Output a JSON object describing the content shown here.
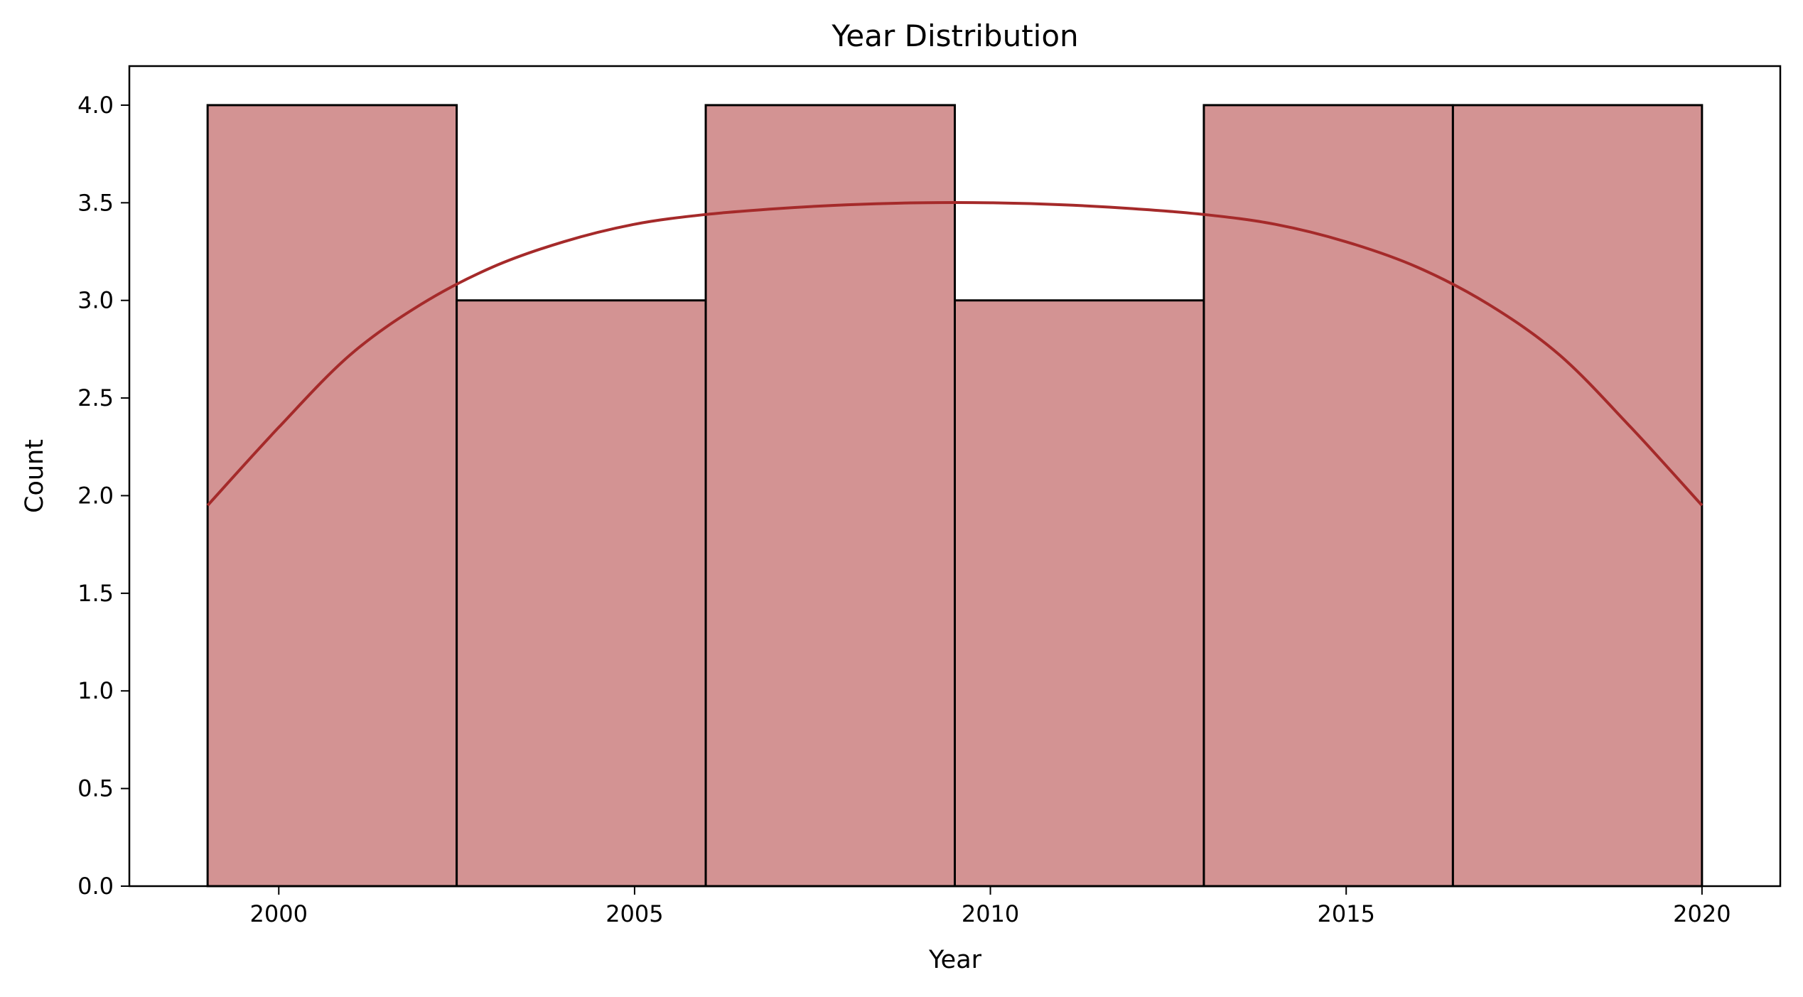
{
  "chart_data": {
    "type": "bar",
    "subtype": "histogram",
    "title": "Year Distribution",
    "xlabel": "Year",
    "ylabel": "Count",
    "bins": [
      {
        "start": 1999.0,
        "end": 2002.5,
        "count": 4
      },
      {
        "start": 2002.5,
        "end": 2006.0,
        "count": 3
      },
      {
        "start": 2006.0,
        "end": 2009.5,
        "count": 4
      },
      {
        "start": 2009.5,
        "end": 2013.0,
        "count": 3
      },
      {
        "start": 2013.0,
        "end": 2016.5,
        "count": 4
      },
      {
        "start": 2016.5,
        "end": 2020.0,
        "count": 4
      }
    ],
    "kde": {
      "x": [
        1999,
        2000,
        2001,
        2002,
        2003,
        2004,
        2005,
        2006,
        2007,
        2008,
        2009,
        2010,
        2011,
        2012,
        2013,
        2014,
        2015,
        2016,
        2017,
        2018,
        2019,
        2020
      ],
      "y": [
        1.95,
        2.35,
        2.72,
        2.98,
        3.17,
        3.3,
        3.39,
        3.44,
        3.47,
        3.49,
        3.5,
        3.5,
        3.49,
        3.47,
        3.44,
        3.39,
        3.3,
        3.17,
        2.98,
        2.72,
        2.35,
        1.95
      ]
    },
    "xlim": [
      1997.9,
      2021.1
    ],
    "ylim": [
      0,
      4.2
    ],
    "xticks": [
      "2000",
      "2005",
      "2010",
      "2015",
      "2020"
    ],
    "yticks": [
      "0.0",
      "0.5",
      "1.0",
      "1.5",
      "2.0",
      "2.5",
      "3.0",
      "3.5",
      "4.0"
    ],
    "bar_color": "#d39393",
    "edge_color": "#000000",
    "kde_color": "#a52a2a",
    "grid": false,
    "legend": "none"
  }
}
